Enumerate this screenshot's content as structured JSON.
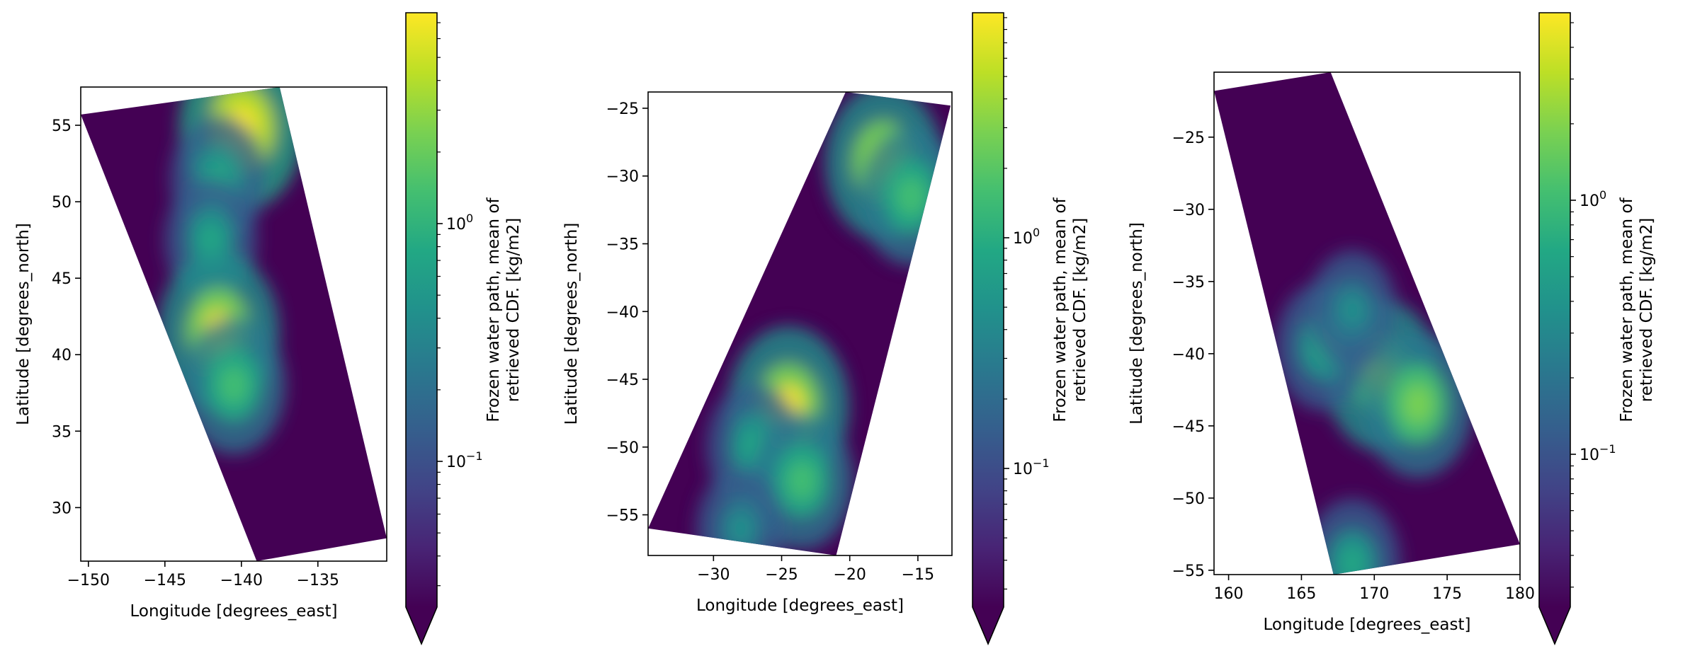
{
  "colors": {
    "viridis": [
      "#440154",
      "#482475",
      "#414487",
      "#355f8d",
      "#2a788e",
      "#21918c",
      "#22a884",
      "#44bf70",
      "#7ad151",
      "#bddf26",
      "#fde725"
    ],
    "background": "#440154",
    "axis": "#000000"
  },
  "chart_data": [
    {
      "type": "heatmap",
      "xlabel": "Longitude [degrees_east]",
      "ylabel": "Latitude [degrees_north]",
      "xlim": [
        -150.5,
        -130.5
      ],
      "ylim": [
        26.5,
        57.5
      ],
      "xticks": [
        -150,
        -145,
        -140,
        -135
      ],
      "xtick_labels": [
        "−150",
        "−145",
        "−140",
        "−135"
      ],
      "yticks": [
        30,
        35,
        40,
        45,
        50,
        55
      ],
      "ytick_labels": [
        "30",
        "35",
        "40",
        "45",
        "50",
        "55"
      ],
      "swath_corners": [
        [
          -150.5,
          55.7
        ],
        [
          -137.5,
          57.5
        ],
        [
          -130.5,
          28.0
        ],
        [
          -139.0,
          26.5
        ]
      ],
      "features": [
        {
          "lon": -140.0,
          "lat": 54.8,
          "intensity": 1.0
        },
        {
          "lon": -141.5,
          "lat": 51.5,
          "intensity": 0.6
        },
        {
          "lon": -142.0,
          "lat": 47.5,
          "intensity": 0.55
        },
        {
          "lon": -141.5,
          "lat": 41.5,
          "intensity": 0.95
        },
        {
          "lon": -140.5,
          "lat": 38.0,
          "intensity": 0.7
        }
      ],
      "colorbar": {
        "label_line1": "Frozen water path, mean of",
        "label_line2": "retrieved CDF. [kg/m2]",
        "scale": "log",
        "ticks": [
          {
            "base": "10",
            "exp": "0"
          },
          {
            "base": "10",
            "exp": "−1"
          }
        ],
        "extend": "min"
      }
    },
    {
      "type": "heatmap",
      "xlabel": "Longitude [degrees_east]",
      "ylabel": "Latitude [degrees_north]",
      "xlim": [
        -34.8,
        -12.5
      ],
      "ylim": [
        -58.0,
        -23.8
      ],
      "xticks": [
        -30,
        -25,
        -20,
        -15
      ],
      "xtick_labels": [
        "−30",
        "−25",
        "−20",
        "−15"
      ],
      "yticks": [
        -55,
        -50,
        -45,
        -40,
        -35,
        -30,
        -25
      ],
      "ytick_labels": [
        "−55",
        "−50",
        "−45",
        "−40",
        "−35",
        "−30",
        "−25"
      ],
      "swath_corners": [
        [
          -20.3,
          -23.8
        ],
        [
          -12.6,
          -24.8
        ],
        [
          -21.0,
          -58.0
        ],
        [
          -34.8,
          -56.0
        ]
      ],
      "features": [
        {
          "lon": -17.5,
          "lat": -29.0,
          "intensity": 0.9
        },
        {
          "lon": -15.5,
          "lat": -31.5,
          "intensity": 0.7
        },
        {
          "lon": -24.5,
          "lat": -47.0,
          "intensity": 0.95
        },
        {
          "lon": -27.0,
          "lat": -50.0,
          "intensity": 0.6
        },
        {
          "lon": -23.5,
          "lat": -52.5,
          "intensity": 0.7
        },
        {
          "lon": -28.0,
          "lat": -56.0,
          "intensity": 0.5
        }
      ],
      "colorbar": {
        "label_line1": "Frozen water path, mean of",
        "label_line2": "retrieved CDF. [kg/m2]",
        "scale": "log",
        "ticks": [
          {
            "base": "10",
            "exp": "0"
          },
          {
            "base": "10",
            "exp": "−1"
          }
        ],
        "extend": "min"
      }
    },
    {
      "type": "heatmap",
      "xlabel": "Longitude [degrees_east]",
      "ylabel": "Latitude [degrees_north]",
      "xlim": [
        159.0,
        180.0
      ],
      "ylim": [
        -55.3,
        -20.5
      ],
      "xticks": [
        160,
        165,
        170,
        175,
        180
      ],
      "xtick_labels": [
        "160",
        "165",
        "170",
        "175",
        "180"
      ],
      "yticks": [
        -55,
        -50,
        -45,
        -40,
        -35,
        -30,
        -25
      ],
      "ytick_labels": [
        "−55",
        "−50",
        "−45",
        "−40",
        "−35",
        "−30",
        "−25"
      ],
      "swath_corners": [
        [
          159.0,
          -21.8
        ],
        [
          167.0,
          -20.5
        ],
        [
          180.0,
          -53.2
        ],
        [
          167.2,
          -55.3
        ]
      ],
      "features": [
        {
          "lon": 170.5,
          "lat": -41.5,
          "intensity": 0.85
        },
        {
          "lon": 166.5,
          "lat": -39.5,
          "intensity": 0.6
        },
        {
          "lon": 173.0,
          "lat": -43.5,
          "intensity": 0.8
        },
        {
          "lon": 168.5,
          "lat": -37.0,
          "intensity": 0.5
        },
        {
          "lon": 168.5,
          "lat": -54.5,
          "intensity": 0.6
        }
      ],
      "colorbar": {
        "label_line1": "Frozen water path, mean of",
        "label_line2": "retrieved CDF. [kg/m2]",
        "scale": "log",
        "ticks": [
          {
            "base": "10",
            "exp": "0"
          },
          {
            "base": "10",
            "exp": "−1"
          }
        ],
        "extend": "min"
      }
    }
  ]
}
